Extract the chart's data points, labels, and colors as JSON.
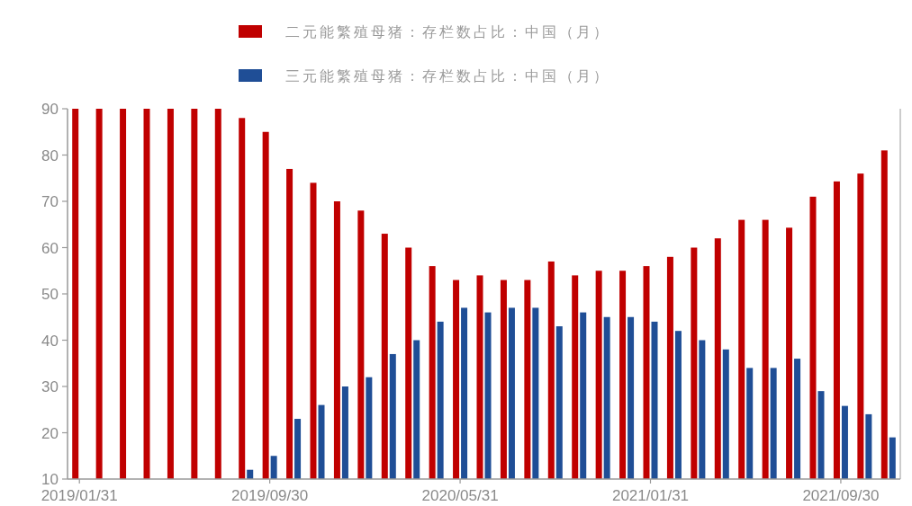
{
  "chart_data": {
    "type": "bar",
    "categories": [
      "2019/01/31",
      null,
      null,
      null,
      null,
      null,
      null,
      null,
      "2019/09/30",
      null,
      null,
      null,
      null,
      null,
      null,
      null,
      "2020/05/31",
      null,
      null,
      null,
      null,
      null,
      null,
      null,
      "2021/01/31",
      null,
      null,
      null,
      null,
      null,
      null,
      null,
      "2021/09/30",
      null,
      null
    ],
    "series": [
      {
        "name": "二元能繁殖母猪：存栏数占比：中国（月）",
        "color": "#c00000",
        "values": [
          90,
          90,
          90,
          90,
          90,
          90,
          90,
          88,
          85,
          77,
          74,
          70,
          68,
          63,
          60,
          56,
          53,
          54,
          53,
          53,
          57,
          54,
          55,
          55,
          56,
          58,
          60,
          62,
          66,
          66,
          64.3,
          71,
          74.3,
          76,
          81
        ]
      },
      {
        "name": "三元能繁殖母猪：存栏数占比：中国（月）",
        "color": "#1f4e96",
        "values": [
          null,
          null,
          null,
          null,
          null,
          null,
          null,
          12,
          15,
          23,
          26,
          30,
          32,
          37,
          40,
          44,
          47,
          46,
          47,
          47,
          43,
          46,
          45,
          45,
          44,
          42,
          40,
          38,
          34,
          34,
          36,
          29,
          25.8,
          24,
          19
        ]
      }
    ],
    "ylim": [
      10,
      90
    ],
    "yticks": [
      10,
      20,
      30,
      40,
      50,
      60,
      70,
      80,
      90
    ],
    "legend": "top"
  }
}
